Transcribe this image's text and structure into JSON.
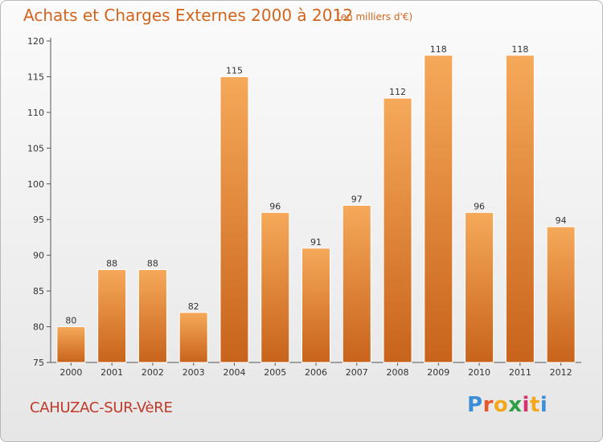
{
  "chart_data": {
    "type": "bar",
    "title": "Achats et Charges Externes 2000 à 2012",
    "subtitle": "(en milliers d'€)",
    "categories": [
      "2000",
      "2001",
      "2002",
      "2003",
      "2004",
      "2005",
      "2006",
      "2007",
      "2008",
      "2009",
      "2010",
      "2011",
      "2012"
    ],
    "values": [
      80,
      88,
      88,
      82,
      115,
      96,
      91,
      97,
      112,
      118,
      96,
      118,
      94
    ],
    "ylim": [
      75,
      120
    ],
    "yticks": [
      75,
      80,
      85,
      90,
      95,
      100,
      105,
      110,
      115,
      120
    ],
    "grid": false,
    "legend": "none",
    "colors": {
      "bar_light": "#f6a95a",
      "bar_dark": "#c8631b",
      "title": "#d2651b"
    }
  },
  "commune": "CAHUZAC-SUR-VèRE",
  "logo": {
    "letters": [
      "P",
      "r",
      "o",
      "x",
      "i",
      "t",
      "i"
    ],
    "colors": [
      "#3a8fd6",
      "#e8562a",
      "#f2a81d",
      "#2f9e44",
      "#d6336c",
      "#f2a81d",
      "#3a8fd6"
    ]
  }
}
